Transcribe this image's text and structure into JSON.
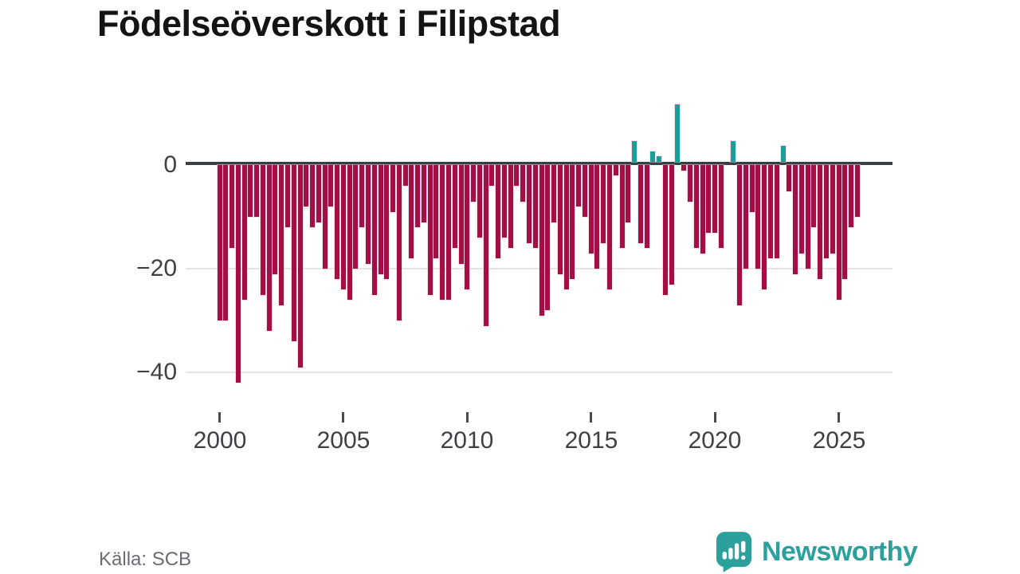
{
  "title": "Födelseöverskott i Filipstad",
  "footer": {
    "source": "Källa: SCB",
    "brand": "Newsworthy"
  },
  "colors": {
    "negative": "#a50d45",
    "positive": "#1b9e99",
    "axis": "#3b4046",
    "grid": "#e4e4e7",
    "brand": "#2ba09c"
  },
  "chart_data": {
    "type": "bar",
    "title": "Födelseöverskott i Filipstad",
    "frequency": "quarterly",
    "legend": "none",
    "grid": "horizontal",
    "x_ticks": [
      2000,
      2005,
      2010,
      2015,
      2020,
      2025
    ],
    "y_ticks": [
      0,
      -20,
      -40
    ],
    "ylim": [
      -44,
      13
    ],
    "series": [
      {
        "year": 2000,
        "values": [
          -30,
          -30,
          -16,
          -42
        ]
      },
      {
        "year": 2001,
        "values": [
          -26,
          -10,
          -10,
          -25
        ]
      },
      {
        "year": 2002,
        "values": [
          -32,
          -21,
          -27,
          -12
        ]
      },
      {
        "year": 2003,
        "values": [
          -34,
          -39,
          -8,
          -12
        ]
      },
      {
        "year": 2004,
        "values": [
          -11,
          -20,
          -8,
          -22
        ]
      },
      {
        "year": 2005,
        "values": [
          -24,
          -26,
          -20,
          -12
        ]
      },
      {
        "year": 2006,
        "values": [
          -19,
          -25,
          -21,
          -22
        ]
      },
      {
        "year": 2007,
        "values": [
          -9,
          -30,
          -4,
          -18
        ]
      },
      {
        "year": 2008,
        "values": [
          -12,
          -11,
          -25,
          -18
        ]
      },
      {
        "year": 2009,
        "values": [
          -26,
          -26,
          -16,
          -19
        ]
      },
      {
        "year": 2010,
        "values": [
          -24,
          -7,
          -14,
          -31
        ]
      },
      {
        "year": 2011,
        "values": [
          -4,
          -18,
          -14,
          -16
        ]
      },
      {
        "year": 2012,
        "values": [
          -4,
          -7,
          -15,
          -16
        ]
      },
      {
        "year": 2013,
        "values": [
          -29,
          -28,
          -11,
          -21
        ]
      },
      {
        "year": 2014,
        "values": [
          -24,
          -22,
          -8,
          -10
        ]
      },
      {
        "year": 2015,
        "values": [
          -17,
          -20,
          -15,
          -24
        ]
      },
      {
        "year": 2016,
        "values": [
          -2,
          -16,
          -11,
          4
        ]
      },
      {
        "year": 2017,
        "values": [
          -15,
          -16,
          2,
          1
        ]
      },
      {
        "year": 2018,
        "values": [
          -25,
          -23,
          11,
          -1
        ]
      },
      {
        "year": 2019,
        "values": [
          -7,
          -16,
          -17,
          -13
        ]
      },
      {
        "year": 2020,
        "values": [
          -13,
          -16,
          0,
          4
        ]
      },
      {
        "year": 2021,
        "values": [
          -27,
          -20,
          -9,
          -20
        ]
      },
      {
        "year": 2022,
        "values": [
          -24,
          -18,
          -18,
          3
        ]
      },
      {
        "year": 2023,
        "values": [
          -5,
          -21,
          -17,
          -20
        ]
      },
      {
        "year": 2024,
        "values": [
          -12,
          -22,
          -18,
          -17
        ]
      },
      {
        "year": 2025,
        "values": [
          -26,
          -22,
          -12,
          -10
        ]
      }
    ]
  }
}
